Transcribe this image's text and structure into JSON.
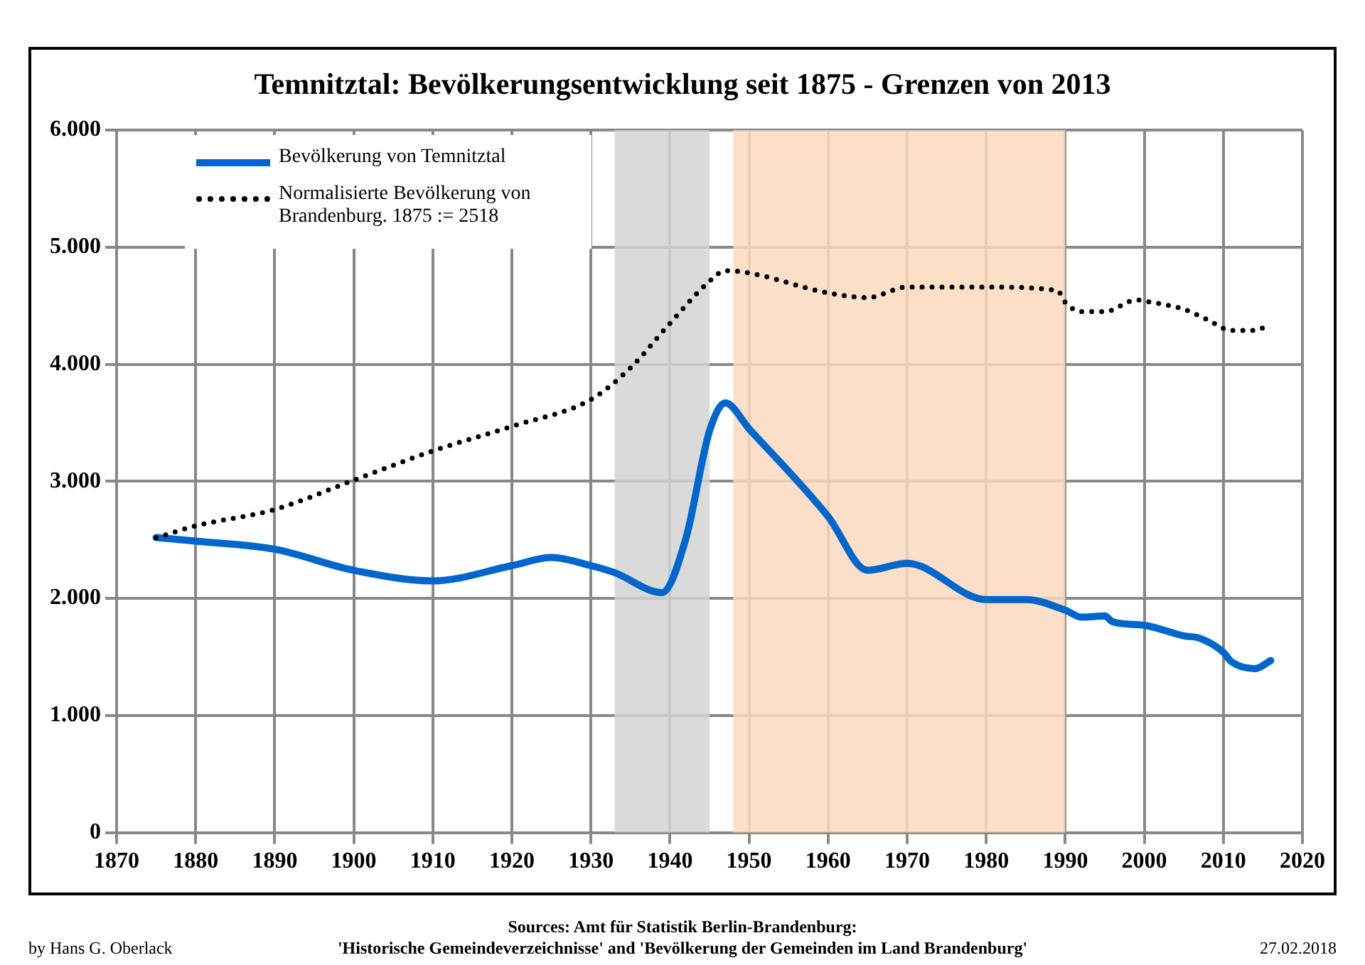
{
  "chart_data": {
    "type": "line",
    "title": "Temnitztal: Bevölkerungsentwicklung seit 1875 - Grenzen von 2013",
    "series": [
      {
        "name": "Bevölkerung von Temnitztal",
        "color": "#0066cc",
        "line_style": "solid",
        "x": [
          1875,
          1880,
          1890,
          1900,
          1910,
          1920,
          1925,
          1930,
          1933,
          1939,
          1942,
          1945,
          1947,
          1950,
          1960,
          1965,
          1970,
          1980,
          1985,
          1990,
          1992,
          1995,
          1996,
          2000,
          2005,
          2007,
          2010,
          2011,
          2014,
          2016
        ],
        "values": [
          2520,
          2490,
          2420,
          2240,
          2150,
          2280,
          2350,
          2280,
          2220,
          2050,
          2510,
          3430,
          3670,
          3450,
          2700,
          2240,
          2300,
          1990,
          1990,
          1900,
          1840,
          1850,
          1800,
          1770,
          1680,
          1660,
          1540,
          1460,
          1400,
          1470
        ]
      },
      {
        "name": "Normalisierte Bevölkerung von Brandenburg. 1875 := 2518",
        "color": "#000000",
        "line_style": "dotted",
        "x": [
          1875,
          1880,
          1890,
          1900,
          1910,
          1920,
          1930,
          1935,
          1940,
          1945,
          1947,
          1950,
          1960,
          1965,
          1970,
          1980,
          1989,
          1990,
          1992,
          1995,
          1999,
          2000,
          2005,
          2008,
          2011,
          2014,
          2016
        ],
        "values": [
          2518,
          2620,
          2760,
          3010,
          3260,
          3470,
          3700,
          3970,
          4350,
          4710,
          4800,
          4780,
          4610,
          4570,
          4660,
          4660,
          4630,
          4530,
          4450,
          4450,
          4550,
          4540,
          4470,
          4380,
          4290,
          4290,
          4350
        ]
      }
    ],
    "xlim": [
      1870,
      2020
    ],
    "xticks": [
      1870,
      1880,
      1890,
      1900,
      1910,
      1920,
      1930,
      1940,
      1950,
      1960,
      1970,
      1980,
      1990,
      2000,
      2010,
      2020
    ],
    "ylim": [
      0,
      6000
    ],
    "yticks": [
      0,
      {
        "value": 1000,
        "label": "1.000"
      },
      {
        "value": 2000,
        "label": "2.000"
      },
      {
        "value": 3000,
        "label": "3.000"
      },
      {
        "value": 4000,
        "label": "4.000"
      },
      {
        "value": 5000,
        "label": "5.000"
      },
      {
        "value": 6000,
        "label": "6.000"
      }
    ],
    "bands": [
      {
        "axis": "x",
        "from": 1933,
        "to": 1945,
        "color": "#d3d3d3"
      },
      {
        "axis": "x",
        "from": 1948,
        "to": 1990,
        "color": "#fcd9bf"
      }
    ],
    "grid": true,
    "legend": "top left",
    "marker": "none",
    "annotations": [
      "by Hans G. Oberlack",
      "Sources: Amt für Statistik Berlin-Brandenburg:\n'Historische Gemeindeverzeichnisse' and 'Bevölkerung der Gemeinden im Land Brandenburg'",
      "27.02.2018"
    ]
  }
}
